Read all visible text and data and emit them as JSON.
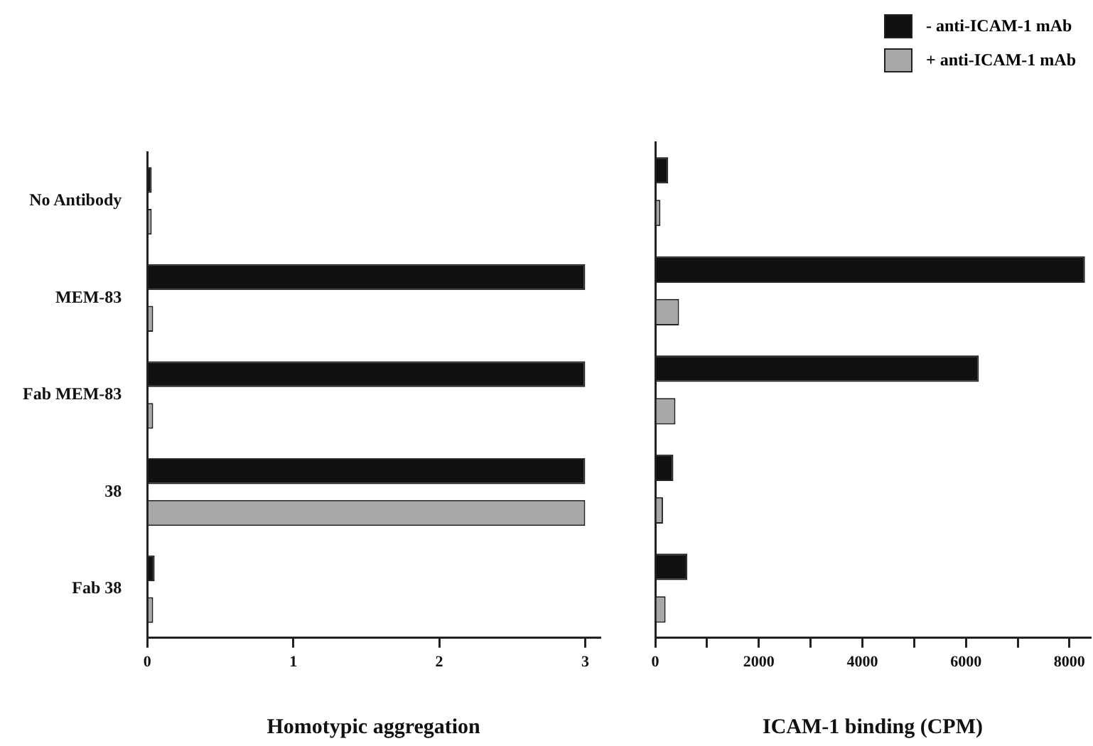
{
  "chart_data": [
    {
      "type": "bar",
      "orientation": "horizontal",
      "xlabel": "Homotypic aggregation",
      "categories": [
        "No Antibody",
        "MEM-83",
        "Fab MEM-83",
        "38",
        "Fab 38"
      ],
      "xlim": [
        0,
        3.1
      ],
      "xticks": [
        0,
        1,
        2,
        3
      ],
      "legend": false,
      "series": [
        {
          "color": "#111111",
          "values": [
            0.03,
            3.0,
            3.0,
            3.0,
            0.05
          ]
        },
        {
          "color": "#a8a8a8",
          "values": [
            0.03,
            0.04,
            0.04,
            3.0,
            0.04
          ]
        }
      ]
    },
    {
      "type": "bar",
      "orientation": "horizontal",
      "xlabel": "ICAM-1 binding (CPM)",
      "categories": [
        null,
        null,
        null,
        null,
        null
      ],
      "tick_labels": "x",
      "xlim": [
        0,
        8400
      ],
      "xticks": [
        0,
        {
          "value": 1000,
          "label": null
        },
        2000,
        {
          "value": 3000,
          "label": null
        },
        4000,
        {
          "value": 5000,
          "label": null
        },
        6000,
        {
          "value": 7000,
          "label": null
        },
        8000
      ],
      "legend": "top right",
      "series": [
        {
          "name": "- anti-ICAM-1 mAb",
          "color": "#111111",
          "values": [
            250,
            8300,
            6250,
            350,
            620
          ]
        },
        {
          "name": "+ anti-ICAM-1 mAb",
          "color": "#a8a8a8",
          "values": [
            100,
            460,
            390,
            150,
            200
          ]
        }
      ]
    }
  ]
}
